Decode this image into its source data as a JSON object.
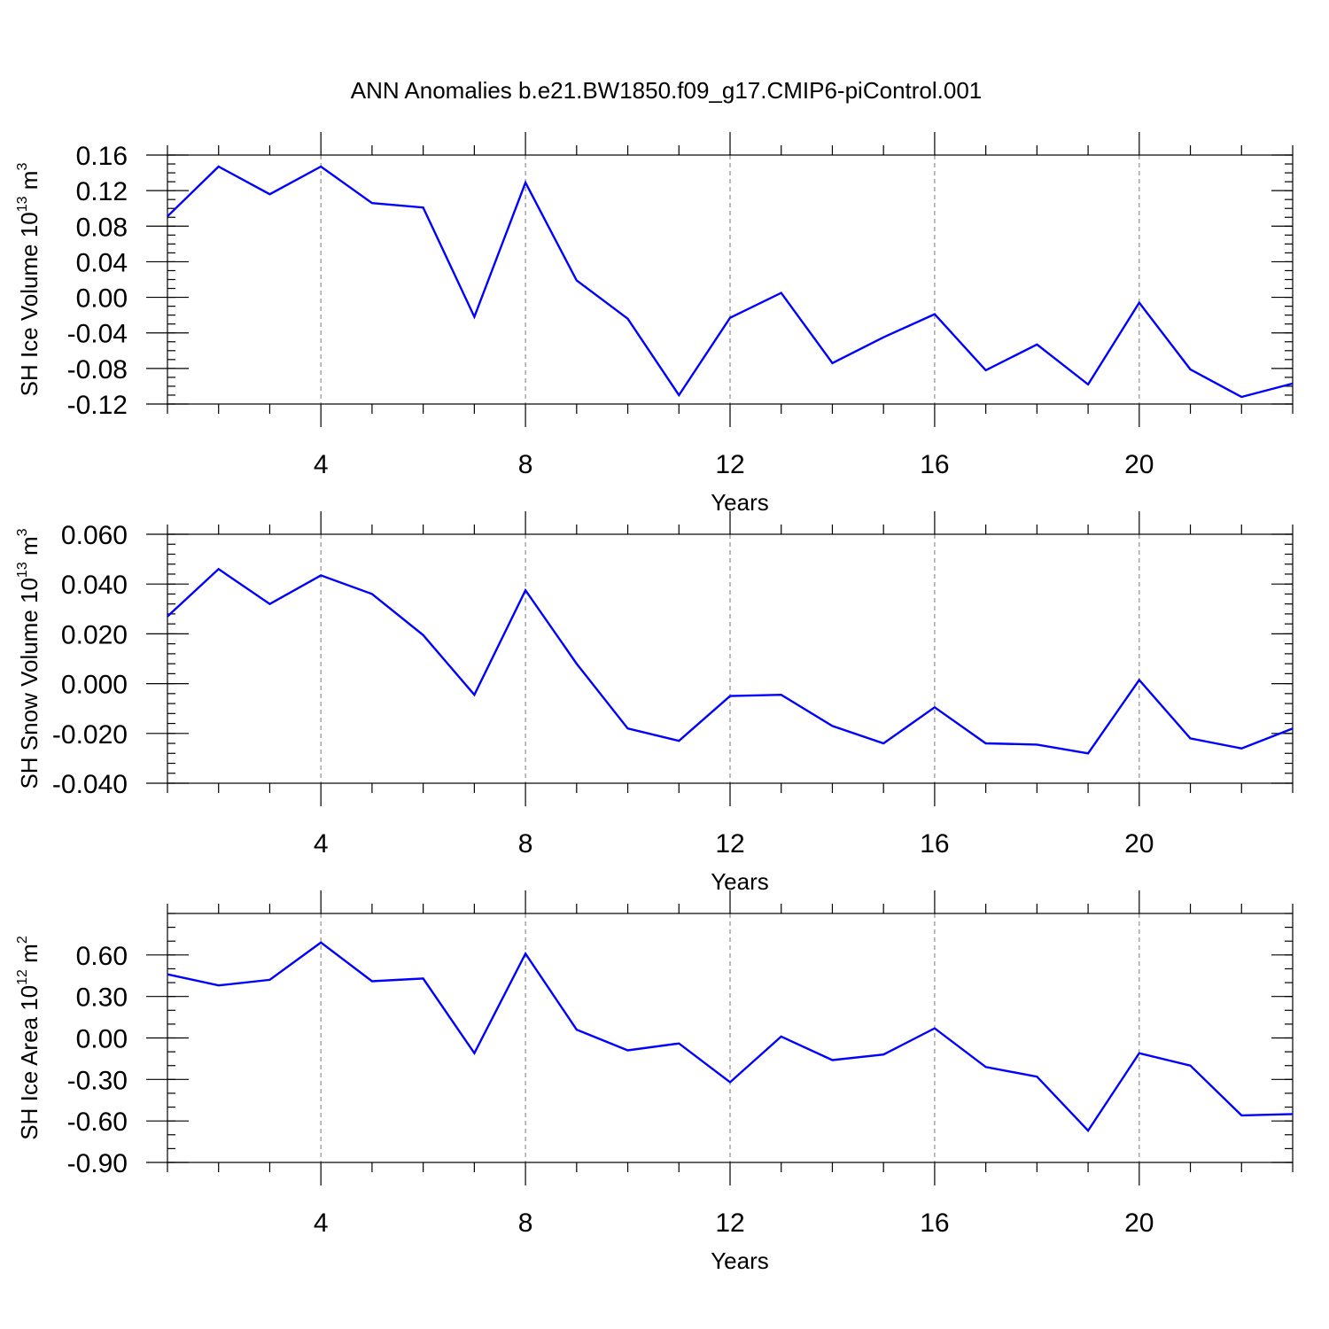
{
  "title": "ANN Anomalies b.e21.BW1850.f09_g17.CMIP6-piControl.001",
  "chart_data": [
    {
      "type": "line",
      "xlabel": "Years",
      "ylabel_main": "SH Ice Volume 10",
      "ylabel_exp": "13",
      "ylabel_unit": " m",
      "ylabel_unit_exp": "3",
      "xlim": [
        1,
        23
      ],
      "ylim": [
        -0.12,
        0.16
      ],
      "yticks": [
        -0.12,
        -0.08,
        -0.04,
        0.0,
        0.04,
        0.08,
        0.12,
        0.16
      ],
      "ytick_labels": [
        "-0.12",
        "-0.08",
        "-0.04",
        "0.00",
        "0.04",
        "0.08",
        "0.12",
        "0.16"
      ],
      "yminor_step": 0.01,
      "xticks": [
        4,
        8,
        12,
        16,
        20
      ],
      "xtick_labels": [
        "4",
        "8",
        "12",
        "16",
        "20"
      ],
      "grid": true,
      "color": "#0000ff",
      "x": [
        1,
        2,
        3,
        4,
        5,
        6,
        7,
        8,
        9,
        10,
        11,
        12,
        13,
        14,
        15,
        16,
        17,
        18,
        19,
        20,
        21,
        22,
        23
      ],
      "values": [
        0.091,
        0.147,
        0.116,
        0.147,
        0.106,
        0.101,
        -0.022,
        0.129,
        0.019,
        -0.024,
        -0.11,
        -0.023,
        0.005,
        -0.074,
        -0.045,
        -0.019,
        -0.082,
        -0.053,
        -0.098,
        -0.006,
        -0.081,
        -0.112,
        -0.097
      ]
    },
    {
      "type": "line",
      "xlabel": "Years",
      "ylabel_main": "SH Snow Volume 10",
      "ylabel_exp": "13",
      "ylabel_unit": " m",
      "ylabel_unit_exp": "3",
      "xlim": [
        1,
        23
      ],
      "ylim": [
        -0.04,
        0.06
      ],
      "yticks": [
        -0.04,
        -0.02,
        0.0,
        0.02,
        0.04,
        0.06
      ],
      "ytick_labels": [
        "-0.040",
        "-0.020",
        "0.000",
        "0.020",
        "0.040",
        "0.060"
      ],
      "yminor_step": 0.004,
      "xticks": [
        4,
        8,
        12,
        16,
        20
      ],
      "xtick_labels": [
        "4",
        "8",
        "12",
        "16",
        "20"
      ],
      "grid": true,
      "color": "#0000ff",
      "x": [
        1,
        2,
        3,
        4,
        5,
        6,
        7,
        8,
        9,
        10,
        11,
        12,
        13,
        14,
        15,
        16,
        17,
        18,
        19,
        20,
        21,
        22,
        23
      ],
      "values": [
        0.027,
        0.046,
        0.032,
        0.0435,
        0.036,
        0.0195,
        -0.0045,
        0.0375,
        0.008,
        -0.018,
        -0.023,
        -0.005,
        -0.0045,
        -0.017,
        -0.024,
        -0.0095,
        -0.024,
        -0.0245,
        -0.028,
        0.0015,
        -0.022,
        -0.026,
        -0.018
      ]
    },
    {
      "type": "line",
      "xlabel": "Years",
      "ylabel_main": "SH Ice Area 10",
      "ylabel_exp": "12",
      "ylabel_unit": " m",
      "ylabel_unit_exp": "2",
      "xlim": [
        1,
        23
      ],
      "ylim": [
        -0.9,
        0.9
      ],
      "yticks": [
        -0.9,
        -0.6,
        -0.3,
        0.0,
        0.3,
        0.6
      ],
      "ytick_labels": [
        "-0.90",
        "-0.60",
        "-0.30",
        "0.00",
        "0.30",
        "0.60"
      ],
      "yminor_step": 0.1,
      "xticks": [
        4,
        8,
        12,
        16,
        20
      ],
      "xtick_labels": [
        "4",
        "8",
        "12",
        "16",
        "20"
      ],
      "grid": true,
      "color": "#0000ff",
      "x": [
        1,
        2,
        3,
        4,
        5,
        6,
        7,
        8,
        9,
        10,
        11,
        12,
        13,
        14,
        15,
        16,
        17,
        18,
        19,
        20,
        21,
        22,
        23
      ],
      "values": [
        0.46,
        0.38,
        0.42,
        0.69,
        0.41,
        0.43,
        -0.11,
        0.61,
        0.06,
        -0.09,
        -0.04,
        -0.32,
        0.01,
        -0.16,
        -0.12,
        0.07,
        -0.21,
        -0.28,
        -0.67,
        -0.11,
        -0.2,
        -0.56,
        -0.55
      ]
    }
  ]
}
